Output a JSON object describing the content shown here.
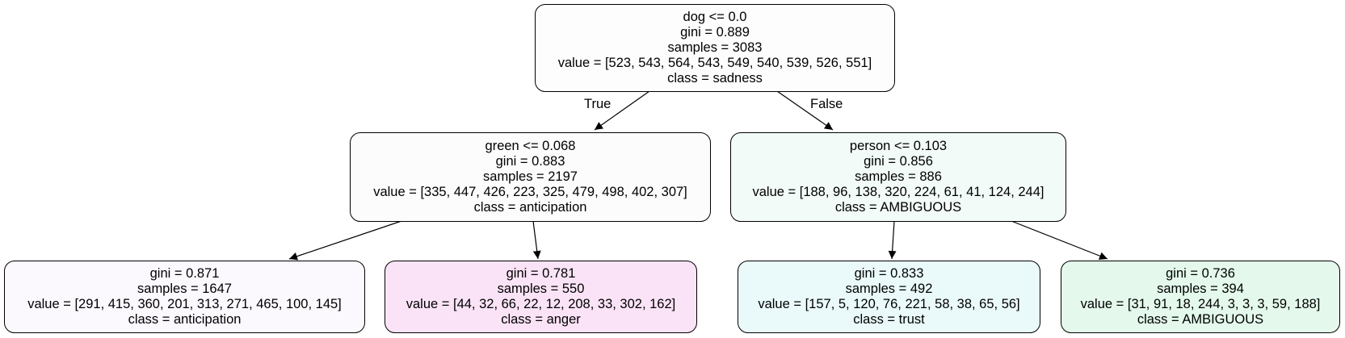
{
  "colors": {
    "root": "#fdfdfd",
    "left": "#fcfcfd",
    "right": "#f2fbf7",
    "leaf_ll": "#fbf8fe",
    "leaf_lr": "#fae3f6",
    "leaf_rl": "#eafafa",
    "leaf_rr": "#e4f9ec"
  },
  "root": {
    "rule": "dog <= 0.0",
    "gini": "gini = 0.889",
    "samples": "samples = 3083",
    "value": "value = [523, 543, 564, 543, 549, 540, 539, 526, 551]",
    "class": "class = sadness"
  },
  "left": {
    "rule": "green <= 0.068",
    "gini": "gini = 0.883",
    "samples": "samples = 2197",
    "value": "value = [335, 447, 426, 223, 325, 479, 498, 402, 307]",
    "class": "class = anticipation"
  },
  "right": {
    "rule": "person <= 0.103",
    "gini": "gini = 0.856",
    "samples": "samples = 886",
    "value": "value = [188, 96, 138, 320, 224, 61, 41, 124, 244]",
    "class": "class = AMBIGUOUS"
  },
  "leaf_ll": {
    "gini": "gini = 0.871",
    "samples": "samples = 1647",
    "value": "value = [291, 415, 360, 201, 313, 271, 465, 100, 145]",
    "class": "class = anticipation"
  },
  "leaf_lr": {
    "gini": "gini = 0.781",
    "samples": "samples = 550",
    "value": "value = [44, 32, 66, 22, 12, 208, 33, 302, 162]",
    "class": "class = anger"
  },
  "leaf_rl": {
    "gini": "gini = 0.833",
    "samples": "samples = 492",
    "value": "value = [157, 5, 120, 76, 221, 58, 38, 65, 56]",
    "class": "class = trust"
  },
  "leaf_rr": {
    "gini": "gini = 0.736",
    "samples": "samples = 394",
    "value": "value = [31, 91, 18, 244, 3, 3, 3, 59, 188]",
    "class": "class = AMBIGUOUS"
  },
  "edges": {
    "true_label": "True",
    "false_label": "False"
  }
}
